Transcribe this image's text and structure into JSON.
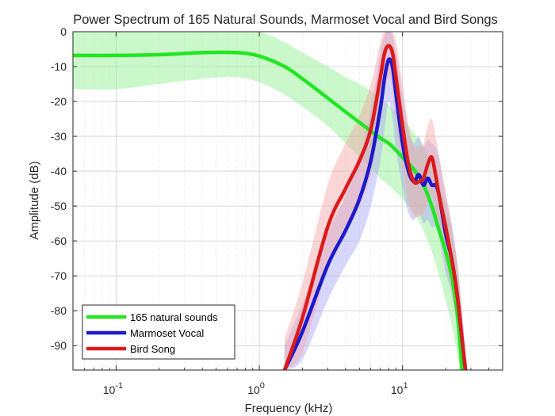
{
  "chart_data": {
    "type": "line",
    "title": "Power Spectrum of 165 Natural Sounds, Marmoset Vocal and Bird Songs",
    "xlabel": "Frequency (kHz)",
    "ylabel": "Amplitude (dB)",
    "x_scale": "log",
    "xlim": [
      0.05,
      50
    ],
    "ylim": [
      -97,
      0
    ],
    "x_ticks": [
      0.1,
      1,
      10
    ],
    "x_tick_labels": [
      "10^-1",
      "10^0",
      "10^1"
    ],
    "x_tick_parts": [
      {
        "base": "10",
        "exp": "-1"
      },
      {
        "base": "10",
        "exp": "0"
      },
      {
        "base": "10",
        "exp": "1"
      }
    ],
    "y_ticks": [
      0,
      -10,
      -20,
      -30,
      -40,
      -50,
      -60,
      -70,
      -80,
      -90
    ],
    "y_tick_labels": [
      "0",
      "-10",
      "-20",
      "-30",
      "-40",
      "-50",
      "-60",
      "-70",
      "-80",
      "-90"
    ],
    "grid": true,
    "legend_position": "bottom-left",
    "series": [
      {
        "name": "165 natural sounds",
        "color": "#22e622",
        "band_color": "#8cf08c",
        "x": [
          0.05,
          0.1,
          0.2,
          0.4,
          0.7,
          1.0,
          1.5,
          2,
          3,
          4,
          5,
          6,
          7,
          8,
          9,
          10,
          12,
          14,
          16,
          18,
          20,
          22,
          24,
          25,
          26
        ],
        "y": [
          -6.8,
          -6.8,
          -6.6,
          -6.0,
          -6.0,
          -7.0,
          -10.0,
          -13.5,
          -19.0,
          -23.0,
          -26.0,
          -28.5,
          -30.5,
          -32.0,
          -34.0,
          -36.0,
          -39.5,
          -44.0,
          -50.0,
          -57.0,
          -63.0,
          -70.0,
          -80.0,
          -88.0,
          -97.0
        ],
        "upper": [
          0,
          0,
          0,
          0,
          0,
          0,
          -3,
          -6,
          -10,
          -13,
          -15,
          -17,
          -19,
          -21,
          -23,
          -25,
          -29,
          -33,
          -38,
          -44,
          -50,
          -57,
          -65,
          -72,
          -80
        ],
        "lower": [
          -16.5,
          -16.5,
          -15.0,
          -13.5,
          -13.0,
          -14.5,
          -18.0,
          -21.5,
          -27.0,
          -32.0,
          -36.0,
          -39.0,
          -42.0,
          -44.0,
          -46.0,
          -48.0,
          -52.0,
          -57.0,
          -63.0,
          -70.0,
          -77.0,
          -84.0,
          -92.0,
          -97.0,
          -97.0
        ]
      },
      {
        "name": "Marmoset Vocal",
        "color": "#1a1acc",
        "band_color": "#a6a6f7",
        "x": [
          1.5,
          2,
          3,
          4,
          5,
          6,
          7,
          7.5,
          8,
          8.5,
          9,
          10,
          11,
          12,
          13,
          14,
          15,
          16,
          17,
          18,
          20,
          22,
          24,
          26,
          27.5
        ],
        "y": [
          -97,
          -86,
          -67,
          -57,
          -48,
          -37,
          -22,
          -13,
          -8,
          -10,
          -18,
          -32,
          -40,
          -43,
          -41,
          -44,
          -42,
          -44,
          -44,
          -47,
          -58,
          -65,
          -75,
          -88,
          -97
        ],
        "upper": [
          -90,
          -78,
          -58,
          -47,
          -36,
          -22,
          -6,
          -1,
          0,
          -1,
          -6,
          -18,
          -28,
          -32,
          -30,
          -33,
          -31,
          -32,
          -33,
          -36,
          -47,
          -55,
          -66,
          -80,
          -92
        ],
        "lower": [
          -97,
          -94,
          -77,
          -67,
          -60,
          -50,
          -37,
          -28,
          -20,
          -25,
          -34,
          -45,
          -52,
          -54,
          -52,
          -55,
          -54,
          -56,
          -56,
          -59,
          -69,
          -75,
          -85,
          -97,
          -97
        ]
      },
      {
        "name": "Bird Song",
        "color": "#dd1a1a",
        "band_color": "#f5a3a3",
        "x": [
          1.5,
          2,
          3,
          4,
          5,
          6,
          7,
          7.5,
          8,
          8.5,
          9,
          10,
          11,
          12,
          13,
          14,
          15,
          16,
          17,
          18,
          20,
          22,
          24,
          26,
          27.5
        ],
        "y": [
          -97,
          -82,
          -56,
          -45,
          -37,
          -28,
          -13,
          -6,
          -4,
          -6,
          -13,
          -27,
          -38,
          -43,
          -43,
          -42,
          -38,
          -36,
          -41,
          -47,
          -56,
          -65,
          -75,
          -88,
          -97
        ],
        "upper": [
          -88,
          -72,
          -44,
          -32,
          -24,
          -15,
          -3,
          0,
          0,
          0,
          -3,
          -15,
          -27,
          -33,
          -33,
          -32,
          -27,
          -25,
          -30,
          -36,
          -46,
          -55,
          -66,
          -80,
          -92
        ],
        "lower": [
          -97,
          -92,
          -68,
          -58,
          -50,
          -41,
          -26,
          -17,
          -13,
          -17,
          -26,
          -39,
          -49,
          -53,
          -53,
          -52,
          -49,
          -47,
          -52,
          -57,
          -66,
          -75,
          -85,
          -97,
          -97
        ]
      }
    ]
  }
}
